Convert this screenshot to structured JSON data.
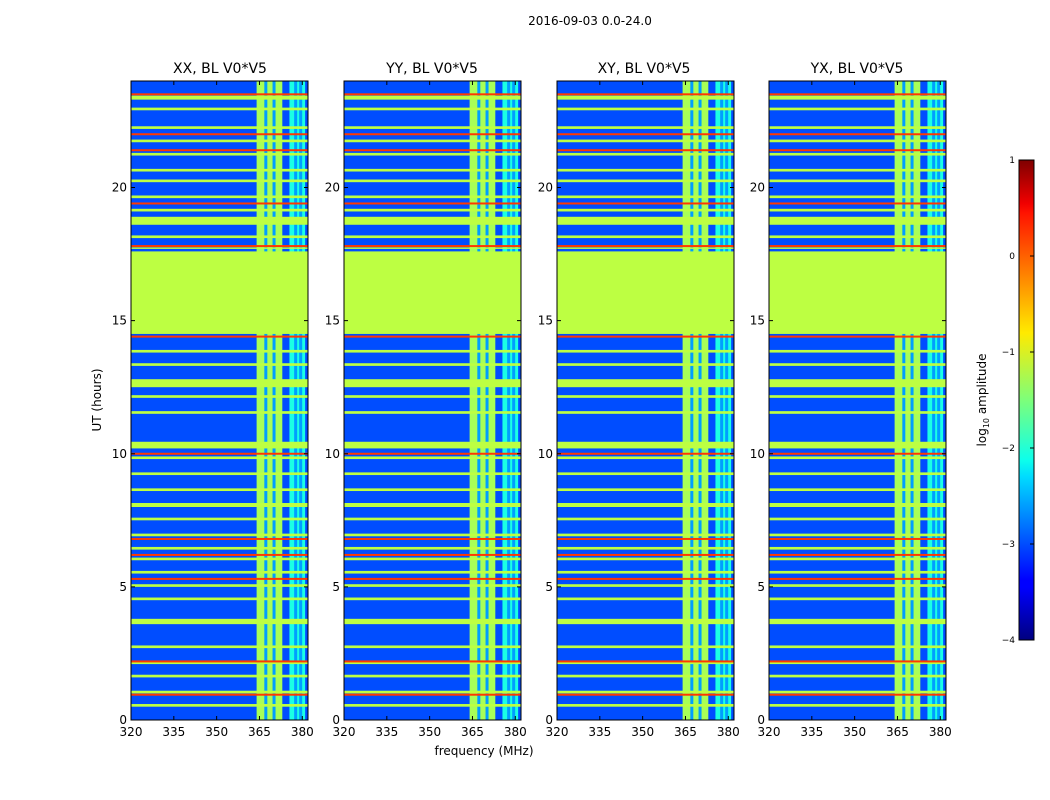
{
  "figure": {
    "suptitle": "2016-09-03 0.0-24.0"
  },
  "chart_data": {
    "type": "heatmap",
    "title": "2016-09-03 0.0-24.0",
    "xlabel": "frequency (MHz)",
    "ylabel": "UT (hours)",
    "xlim": [
      320,
      382
    ],
    "ylim": [
      0,
      24
    ],
    "xticks": [
      "320",
      "335",
      "350",
      "365",
      "380"
    ],
    "xtick_values": [
      320,
      335,
      350,
      365,
      380
    ],
    "yticks": [
      "0",
      "5",
      "10",
      "15",
      "20"
    ],
    "ytick_values": [
      0,
      5,
      10,
      15,
      20
    ],
    "panels": [
      {
        "title": "XX, BL V0*V5"
      },
      {
        "title": "YY, BL V0*V5"
      },
      {
        "title": "XY, BL V0*V5"
      },
      {
        "title": "YX, BL V0*V5"
      }
    ],
    "colorbar": {
      "label_prefix": "log",
      "label_sub": "10",
      "label_suffix": " amplitude",
      "range": [
        -4,
        1
      ],
      "ticks": [
        "−4",
        "−3",
        "−2",
        "−1",
        "0",
        "1"
      ],
      "tick_values": [
        -4,
        -3,
        -2,
        -1,
        0,
        1
      ],
      "colormap": "jet"
    },
    "background_level": -3.0,
    "flagged_block": {
      "ut_range": [
        14.5,
        17.6
      ],
      "level": -1.2
    },
    "bright_channel_ranges_mhz": [
      [
        364,
        373
      ],
      [
        375.5,
        381
      ]
    ],
    "rfi_band_levels": [
      -1.3,
      -2.0
    ],
    "masked_ut_bands": [
      [
        23.3,
        23.45
      ],
      [
        22.9,
        23.0
      ],
      [
        22.2,
        22.3
      ],
      [
        21.7,
        21.8
      ],
      [
        21.2,
        21.3
      ],
      [
        20.6,
        20.7
      ],
      [
        20.2,
        20.3
      ],
      [
        19.6,
        19.7
      ],
      [
        19.1,
        19.2
      ],
      [
        18.6,
        18.9
      ],
      [
        18.1,
        18.2
      ],
      [
        17.7,
        17.75
      ],
      [
        13.8,
        13.9
      ],
      [
        13.3,
        13.4
      ],
      [
        12.5,
        12.8
      ],
      [
        12.1,
        12.2
      ],
      [
        11.5,
        11.6
      ],
      [
        10.2,
        10.45
      ],
      [
        9.8,
        9.9
      ],
      [
        9.2,
        9.3
      ],
      [
        8.6,
        8.7
      ],
      [
        8.0,
        8.15
      ],
      [
        7.5,
        7.6
      ],
      [
        6.9,
        7.0
      ],
      [
        6.4,
        6.5
      ],
      [
        6.0,
        6.1
      ],
      [
        5.5,
        5.6
      ],
      [
        5.0,
        5.1
      ],
      [
        4.5,
        4.6
      ],
      [
        3.6,
        3.8
      ],
      [
        2.7,
        2.8
      ],
      [
        2.1,
        2.2
      ],
      [
        1.6,
        1.7
      ],
      [
        1.0,
        1.1
      ],
      [
        0.5,
        0.6
      ]
    ],
    "hot_ut_lines": [
      23.5,
      22.0,
      21.4,
      19.4,
      17.8,
      14.4,
      10.0,
      6.8,
      6.2,
      5.3,
      2.2,
      0.95
    ]
  }
}
